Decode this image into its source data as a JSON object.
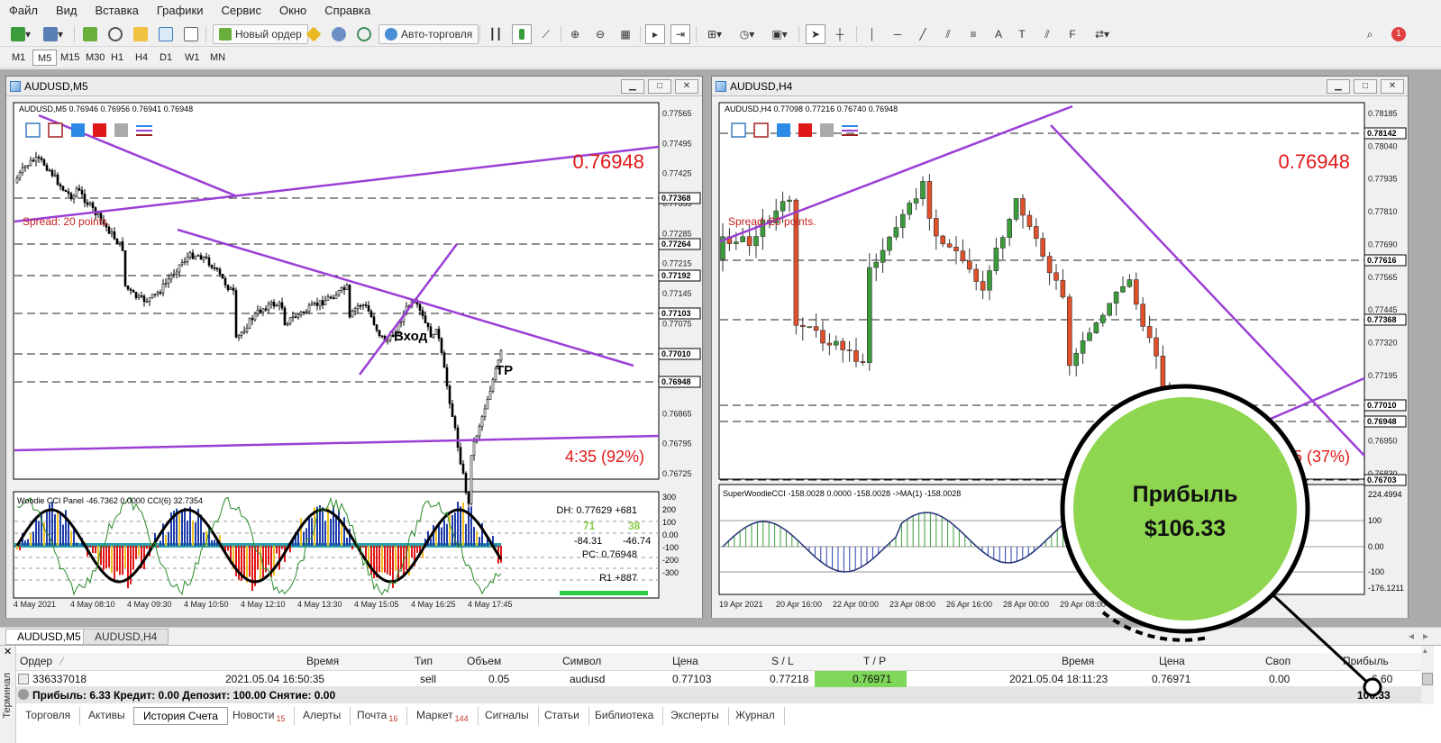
{
  "menu": [
    "Файл",
    "Вид",
    "Вставка",
    "Графики",
    "Сервис",
    "Окно",
    "Справка"
  ],
  "toolbar": {
    "new_order": "Новый ордер",
    "auto_trading": "Авто-торговля",
    "notif_count": "1"
  },
  "timeframes": [
    "M1",
    "M5",
    "M15",
    "M30",
    "H1",
    "H4",
    "D1",
    "W1",
    "MN"
  ],
  "active_timeframe": "M5",
  "chart_left": {
    "window_title": "AUDUSD,M5",
    "info_line": "AUDUSD,M5  0.76946 0.76956 0.76941 0.76948",
    "big_price": "0.76948",
    "spread": "Spread: 20 points.",
    "timer": "4:35 (92%)",
    "label_entry": "Вход",
    "label_tp": "TP",
    "price_axis": [
      "0.77565",
      "0.77495",
      "0.77425",
      "0.77355",
      "0.77285",
      "0.77215",
      "0.77145",
      "0.77075",
      "0.77005",
      "0.76935",
      "0.76865",
      "0.76795",
      "0.76725"
    ],
    "price_tags": [
      "0.77368",
      "0.77264",
      "0.77192",
      "0.77103",
      "0.77010",
      "0.76948"
    ],
    "indicator_title": "Woodie CCI Panel -46.7362 0.0000  CCI(6) 32.7354",
    "indicator_axis": [
      "300",
      "200",
      "100",
      "0.00",
      "-100",
      "-200",
      "-300"
    ],
    "dh": "DH: 0.77629 +681",
    "cci_a": "71",
    "cci_b": "38",
    "cci_c": "-84.31",
    "cci_d": "-46.74",
    "pc": "PC: 0.76948",
    "r1": "R1 +887",
    "time_axis": [
      "4 May 2021",
      "4 May 08:10",
      "4 May 09:30",
      "4 May 10:50",
      "4 May 12:10",
      "4 May 13:30",
      "4 May 15:05",
      "4 May 16:25",
      "4 May 17:45"
    ]
  },
  "chart_right": {
    "window_title": "AUDUSD,H4",
    "info_line": "AUDUSD,H4  0.77098 0.77216 0.76740 0.76948",
    "big_price": "0.76948",
    "spread": "Spread: 20 points.",
    "timer_partial": "35 (37%)",
    "price_axis": [
      "0.78185",
      "0.78040",
      "0.77935",
      "0.77810",
      "0.77690",
      "0.77565",
      "0.77445",
      "0.77320",
      "0.77195",
      "0.77075",
      "0.76950",
      "0.76830"
    ],
    "price_tags": [
      "0.78142",
      "0.77616",
      "0.77368",
      "0.77010",
      "0.76948",
      "0.76703"
    ],
    "indicator_title": "SuperWoodieCCI -158.0028 0.0000 -158.0028  ->MA(1) -158.0028",
    "indicator_axis": [
      "224.4994",
      "100",
      "0.00",
      "-100",
      "-176.1211"
    ],
    "time_axis": [
      "19 Apr 2021",
      "20 Apr 16:00",
      "22 Apr 00:00",
      "23 Apr 08:00",
      "26 Apr 16:00",
      "28 Apr 00:00",
      "29 Apr 08:00"
    ]
  },
  "chart_tabs": [
    "AUDUSD,M5",
    "AUDUSD,H4"
  ],
  "terminal": {
    "side_label": "Терминал",
    "columns": [
      "Ордер",
      "Время",
      "Тип",
      "Объем",
      "Символ",
      "Цена",
      "S / L",
      "T / P",
      "Время",
      "Цена",
      "Своп",
      "Прибыль"
    ],
    "row": {
      "order": "336337018",
      "open_time": "2021.05.04 16:50:35",
      "type": "sell",
      "volume": "0.05",
      "symbol": "audusd",
      "price": "0.77103",
      "sl": "0.77218",
      "tp": "0.76971",
      "close_time": "2021.05.04 18:11:23",
      "close_price": "0.76971",
      "swap": "0.00",
      "profit": "6.60"
    },
    "summary": "Прибыль: 6.33  Кредит: 0.00  Депозит: 100.00  Снятие: 0.00",
    "summary_total": "106.33",
    "tabs": [
      {
        "label": "Торговля",
        "badge": ""
      },
      {
        "label": "Активы",
        "badge": ""
      },
      {
        "label": "История Счета",
        "badge": ""
      },
      {
        "label": "Новости",
        "badge": "15"
      },
      {
        "label": "Алерты",
        "badge": ""
      },
      {
        "label": "Почта",
        "badge": "16"
      },
      {
        "label": "Маркет",
        "badge": "144"
      },
      {
        "label": "Сигналы",
        "badge": ""
      },
      {
        "label": "Статьи",
        "badge": ""
      },
      {
        "label": "Библиотека",
        "badge": ""
      },
      {
        "label": "Эксперты",
        "badge": ""
      },
      {
        "label": "Журнал",
        "badge": ""
      }
    ],
    "active_tab": "История Счета"
  },
  "callout": {
    "line1": "Прибыль",
    "line2": "$106.33"
  },
  "colors": {
    "bull": "#3a9c3a",
    "bear": "#e0502a",
    "trendline": "#9b3fd6",
    "price_red": "#e01818",
    "callout_fill": "#8ed64f",
    "tp_green": "#7fd85a"
  }
}
